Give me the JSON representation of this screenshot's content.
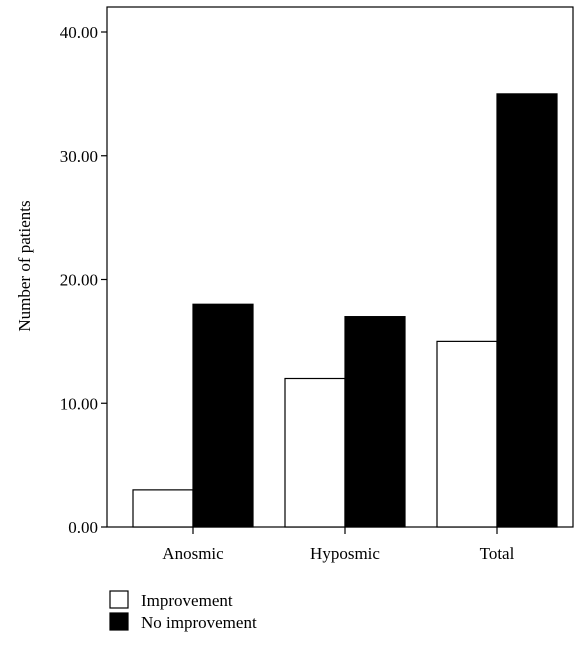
{
  "chart_data": {
    "type": "bar",
    "title": "",
    "xlabel": "",
    "ylabel": "Number of patients",
    "categories": [
      "Anosmic",
      "Hyposmic",
      "Total"
    ],
    "series": [
      {
        "name": "Improvement",
        "values": [
          3,
          12,
          15
        ],
        "color": "#ffffff"
      },
      {
        "name": "No improvement",
        "values": [
          18,
          17,
          35
        ],
        "color": "#000000"
      }
    ],
    "ylim": [
      0,
      40
    ],
    "yticks": [
      0,
      10,
      20,
      30,
      40
    ],
    "ytick_labels": [
      "0.00",
      "10.00",
      "20.00",
      "30.00",
      "40.00"
    ],
    "grid": false,
    "legend_position": "bottom-left"
  }
}
